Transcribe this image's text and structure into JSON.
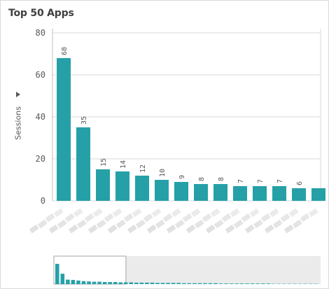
{
  "title": "Top 50 Apps",
  "colors": {
    "bar": "#26a0a7",
    "grid": "#d9d9d9",
    "axis_text": "#595959",
    "navigator_bg": "#ebebeb"
  },
  "icons": {
    "expand": "triangle-right-icon"
  },
  "chart_data": {
    "type": "bar",
    "title": "Top 50 Apps",
    "xlabel": "",
    "ylabel": "Sessions",
    "ylim": [
      0,
      80
    ],
    "yticks": [
      0,
      20,
      40,
      60,
      80
    ],
    "grid": true,
    "categories": [
      "",
      "",
      "",
      "",
      "",
      "",
      "",
      "",
      "",
      "",
      "",
      "",
      "",
      ""
    ],
    "values": [
      68,
      35,
      15,
      14,
      12,
      10,
      9,
      8,
      8,
      7,
      7,
      7,
      6,
      6
    ],
    "labels": [
      "68",
      "35",
      "15",
      "14",
      "12",
      "10",
      "9",
      "8",
      "8",
      "7",
      "7",
      "7",
      "6",
      ""
    ],
    "category_labels_blurred": true,
    "navigator": {
      "values": [
        68,
        35,
        15,
        14,
        12,
        10,
        9,
        8,
        8,
        7,
        7,
        7,
        6,
        6,
        6,
        5,
        5,
        5,
        5,
        4,
        4,
        4,
        4,
        4,
        3,
        3,
        3,
        3,
        3,
        3,
        3,
        2,
        2,
        2,
        2,
        2,
        2,
        2,
        2,
        2,
        2,
        1,
        1,
        1,
        1,
        1,
        1,
        1,
        1,
        1
      ],
      "visible_fraction": 0.27
    }
  }
}
